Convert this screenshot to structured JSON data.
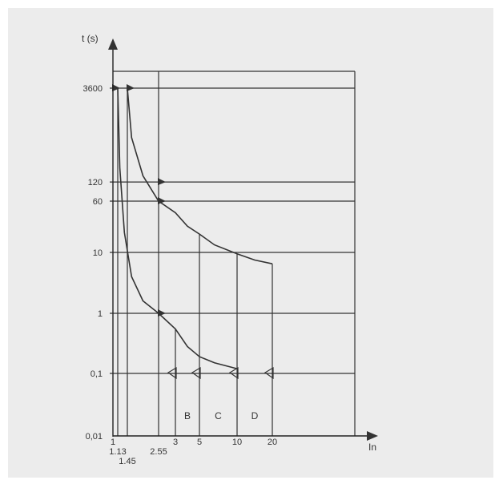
{
  "chart_data": {
    "type": "line",
    "title": "",
    "xlabel": "In",
    "ylabel": "t (s)",
    "y_scale": "log",
    "ylim": [
      0.01,
      3600
    ],
    "y_ticks": [
      "3600",
      "120",
      "60",
      "10",
      "1",
      "0,1",
      "0,01"
    ],
    "x_ticks_top": [
      "1",
      "3",
      "5",
      "10",
      "20"
    ],
    "x_ticks_bottom": [
      "1.13",
      "1.45",
      "2.55"
    ],
    "series": [
      {
        "points": [
          [
            1.13,
            3600
          ],
          [
            1.2,
            200
          ],
          [
            1.35,
            20
          ],
          [
            1.6,
            4
          ],
          [
            2.0,
            1.6
          ],
          [
            2.55,
            1
          ],
          [
            3,
            0.55
          ],
          [
            4,
            0.28
          ],
          [
            5,
            0.19
          ],
          [
            7,
            0.15
          ],
          [
            10,
            0.12
          ]
        ]
      },
      {
        "points": [
          [
            1.45,
            3600
          ],
          [
            1.6,
            600
          ],
          [
            2.0,
            150
          ],
          [
            2.55,
            60
          ],
          [
            3,
            40
          ],
          [
            4,
            25
          ],
          [
            5,
            19
          ],
          [
            7,
            13
          ],
          [
            10,
            9.5
          ],
          [
            15,
            7.5
          ],
          [
            20,
            6.5
          ]
        ]
      }
    ],
    "trip_lines": [
      {
        "label": "B",
        "x_from": 3,
        "x_to": 5
      },
      {
        "label": "C",
        "x_from": 5,
        "x_to": 10
      },
      {
        "label": "D",
        "x_from": 10,
        "x_to": 20
      }
    ]
  }
}
